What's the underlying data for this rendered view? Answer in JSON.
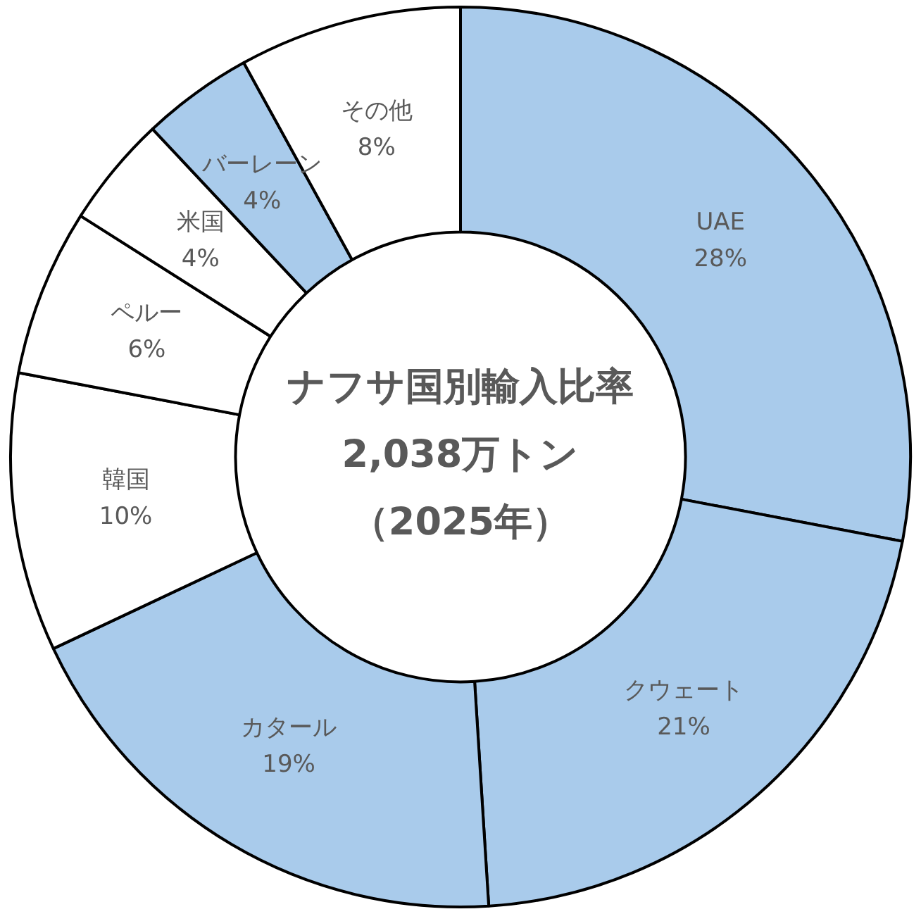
{
  "chart_data": {
    "type": "donut",
    "title": "ナフサ国別輸入比率",
    "subtitle": "2,038万トン",
    "annotations": [
      "（2025年）"
    ],
    "categories": [
      "UAE",
      "クウェート",
      "カタール",
      "韓国",
      "ペルー",
      "米国",
      "バーレーン",
      "その他"
    ],
    "values": [
      28,
      21,
      19,
      10,
      6,
      4,
      4,
      8
    ],
    "value_labels": [
      "28%",
      "21%",
      "19%",
      "10%",
      "6%",
      "4%",
      "4%",
      "8%"
    ],
    "colors": [
      "#a9cbeb",
      "#a9cbeb",
      "#a9cbeb",
      "#ffffff",
      "#ffffff",
      "#ffffff",
      "#a9cbeb",
      "#ffffff"
    ],
    "legend": false
  }
}
